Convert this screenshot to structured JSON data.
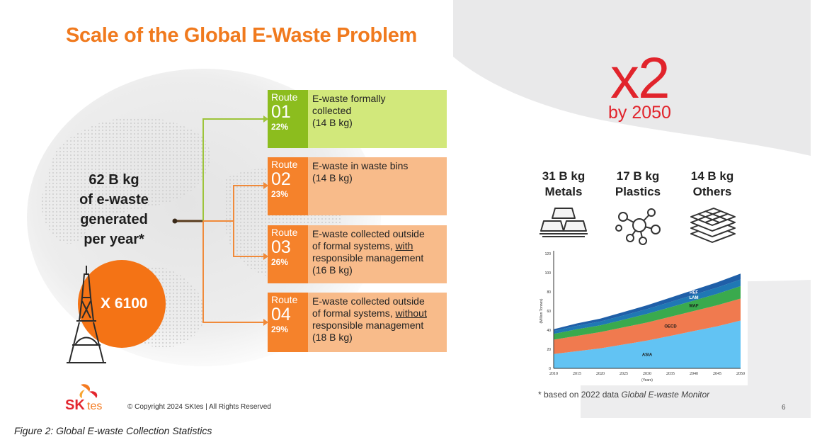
{
  "slide": {
    "title": "Scale of the Global E-Waste Problem",
    "generated_lines": [
      "62 B kg",
      "of e-waste",
      "generated",
      "per year*"
    ],
    "eiffel_multiplier": "X 6100",
    "routes": [
      {
        "label": "Route",
        "number": "01",
        "percent": "22%",
        "desc_lines": [
          "E-waste formally",
          "collected",
          "(14 B kg)"
        ]
      },
      {
        "label": "Route",
        "number": "02",
        "percent": "23%",
        "desc_lines": [
          "E-waste in waste bins",
          "(14 B kg)"
        ]
      },
      {
        "label": "Route",
        "number": "03",
        "percent": "26%",
        "desc_pre": "E-waste collected outside",
        "desc_mid": "of formal systems, ",
        "desc_u": "with",
        "desc_post": [
          "responsible management",
          "(16 B kg)"
        ]
      },
      {
        "label": "Route",
        "number": "04",
        "percent": "29%",
        "desc_pre": "E-waste collected outside",
        "desc_mid": "of formal systems, ",
        "desc_u": "without",
        "desc_post": [
          "responsible management",
          "(18 B kg)"
        ]
      }
    ],
    "growth": {
      "multiplier": "x2",
      "by": "by 2050"
    },
    "materials": [
      {
        "amount": "31 B kg",
        "name": "Metals",
        "icon": "metal-bars-icon"
      },
      {
        "amount": "17 B kg",
        "name": "Plastics",
        "icon": "molecule-icon"
      },
      {
        "amount": "14 B kg",
        "name": "Others",
        "icon": "layers-grid-icon"
      }
    ],
    "footnote_pre": "* based on 2022 data ",
    "footnote_italic": "Global E-waste Monitor",
    "page_number": "6",
    "logo": {
      "sk": "SK",
      "tes": "tes"
    },
    "copyright": "© Copyright 2024 SKtes  |  All Rights Reserved"
  },
  "caption": "Figure 2: Global E-waste Collection Statistics",
  "colors": {
    "orange": "#f07a1e",
    "red": "#e1242c",
    "green": "#8cbd1e",
    "light_green": "#d2e87b",
    "light_orange": "#f8bb8a"
  },
  "chart_data": {
    "type": "area",
    "stacked": true,
    "x": [
      2010,
      2015,
      2020,
      2025,
      2030,
      2035,
      2040,
      2045,
      2050
    ],
    "xtick_labels": [
      "2010",
      "2015",
      "2020",
      "2025",
      "2030",
      "2035",
      "2040",
      "2045",
      "2050"
    ],
    "ytick_labels": [
      "0",
      "20",
      "40",
      "60",
      "80",
      "100",
      "120"
    ],
    "ylim": [
      0,
      120
    ],
    "xlabel": "(Years)",
    "ylabel": "(Million Tonnes)",
    "series": [
      {
        "name": "ASIA",
        "color": "#62c3f3",
        "values": [
          15,
          18,
          21,
          25,
          29,
          34,
          39,
          44,
          50
        ]
      },
      {
        "name": "OECD",
        "color": "#f07a4f",
        "values": [
          15,
          16,
          17,
          18,
          19,
          20,
          21,
          22,
          23
        ]
      },
      {
        "name": "MAF",
        "color": "#3aaa4d",
        "values": [
          6,
          7,
          7,
          8,
          9,
          10,
          11,
          12,
          13
        ]
      },
      {
        "name": "LAM",
        "color": "#1f78b4",
        "values": [
          3,
          3.5,
          4,
          4.5,
          5,
          5.5,
          6,
          6.5,
          7
        ]
      },
      {
        "name": "REF",
        "color": "#1f5fa8",
        "values": [
          2,
          2.5,
          3,
          3.5,
          4,
          4.5,
          5,
          5.5,
          6
        ]
      }
    ]
  }
}
